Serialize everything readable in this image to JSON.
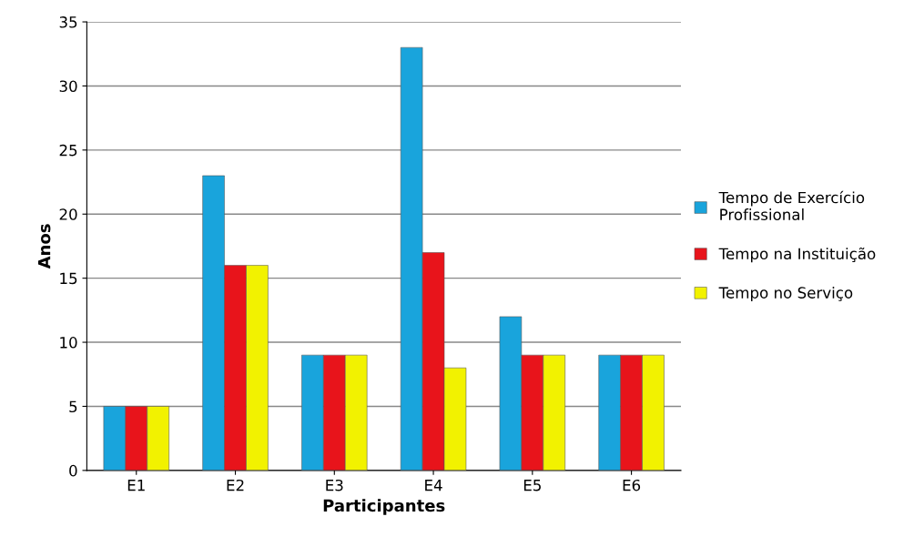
{
  "chart_data": {
    "type": "bar",
    "xlabel": "Participantes",
    "ylabel": "Anos",
    "categories": [
      "E1",
      "E2",
      "E3",
      "E4",
      "E5",
      "E6"
    ],
    "series": [
      {
        "name": "Tempo de Exercício\nProfissional",
        "color": "#19a4dc",
        "values": [
          5,
          23,
          9,
          33,
          12,
          9
        ]
      },
      {
        "name": "Tempo na Instituição",
        "color": "#e8141b",
        "values": [
          5,
          16,
          9,
          17,
          9,
          9
        ]
      },
      {
        "name": "Tempo no Serviço",
        "color": "#f2f200",
        "values": [
          5,
          16,
          9,
          8,
          9,
          9
        ]
      }
    ],
    "ylim": [
      0,
      35
    ],
    "yticks": [
      0,
      5,
      10,
      15,
      20,
      25,
      30,
      35
    ],
    "grid": "y",
    "legend": "right"
  }
}
